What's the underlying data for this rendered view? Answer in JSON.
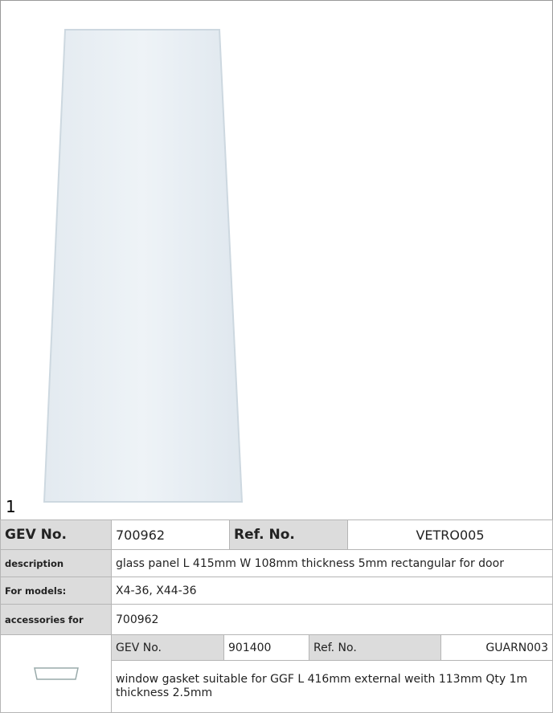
{
  "figure_label": "1",
  "part": {
    "gev_label": "GEV No.",
    "gev_no": "700962",
    "ref_label": "Ref. No.",
    "ref_no": "VETRO005"
  },
  "rows": [
    {
      "label": "description",
      "value": "glass panel  L 415mm W 108mm thickness 5mm rectangular for door"
    },
    {
      "label": "For models:",
      "value": "X4-36, X44-36"
    },
    {
      "label": "accessories for",
      "value": "700962"
    }
  ],
  "accessory": {
    "gev_label": "GEV No.",
    "gev_no": "901400",
    "ref_label": "Ref. No.",
    "ref_no": "GUARN003",
    "description": "window gasket  suitable for GGF L 416mm external weith 113mm Qty 1m thickness 2.5mm"
  }
}
